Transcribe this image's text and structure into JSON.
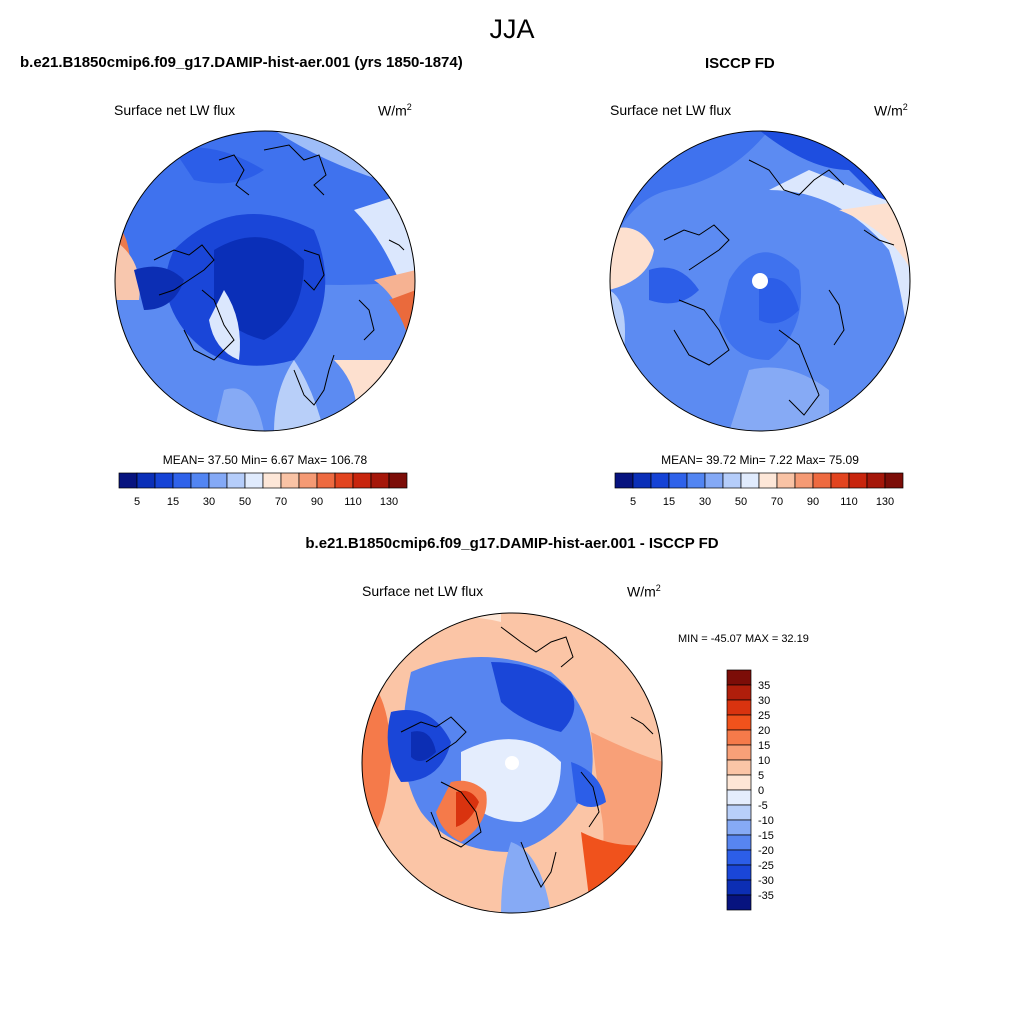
{
  "page": {
    "title": "JJA",
    "left_heading": "b.e21.B1850cmip6.f09_g17.DAMIP-hist-aer.001 (yrs 1850-1874)",
    "right_heading": "ISCCP FD",
    "bottom_heading": "b.e21.B1850cmip6.f09_g17.DAMIP-hist-aer.001 - ISCCP FD"
  },
  "panels": {
    "model": {
      "variable": "Surface net LW flux",
      "units_base": "W/m",
      "units_exp": "2",
      "stats": "MEAN=  37.50  Min=   6.67  Max= 106.78"
    },
    "obs": {
      "variable": "Surface net LW flux",
      "units_base": "W/m",
      "units_exp": "2",
      "stats": "MEAN=  39.72  Min=   7.22  Max=  75.09"
    },
    "diff": {
      "variable": "Surface net LW flux",
      "units_base": "W/m",
      "units_exp": "2",
      "stats": "MIN = -45.07 MAX =  32.19"
    }
  },
  "colorbars": {
    "absolute": {
      "tick_labels": [
        "5",
        "15",
        "30",
        "50",
        "70",
        "90",
        "110",
        "130"
      ],
      "colors": [
        "#07137f",
        "#0a2fb8",
        "#1543d6",
        "#2f62ea",
        "#5285f2",
        "#84a9f6",
        "#b5cdfa",
        "#e0ebfd",
        "#fde7d8",
        "#f9c3a5",
        "#f59a74",
        "#ee6a40",
        "#e2441f",
        "#c8250d",
        "#a5170a",
        "#7c0d08"
      ]
    },
    "difference": {
      "tick_labels": [
        "35",
        "30",
        "25",
        "20",
        "15",
        "10",
        "5",
        "0",
        "-5",
        "-10",
        "-15",
        "-20",
        "-25",
        "-30",
        "-35"
      ],
      "colors_top_to_bottom": [
        "#7c0d08",
        "#b01e0b",
        "#d9330f",
        "#f0521c",
        "#f57a4a",
        "#f8a078",
        "#fbc5a6",
        "#fde6d6",
        "#e4edfd",
        "#b8cff9",
        "#86aaf5",
        "#5785f0",
        "#2c5ee8",
        "#1a46d8",
        "#0c2eb4",
        "#07137f"
      ]
    }
  }
}
